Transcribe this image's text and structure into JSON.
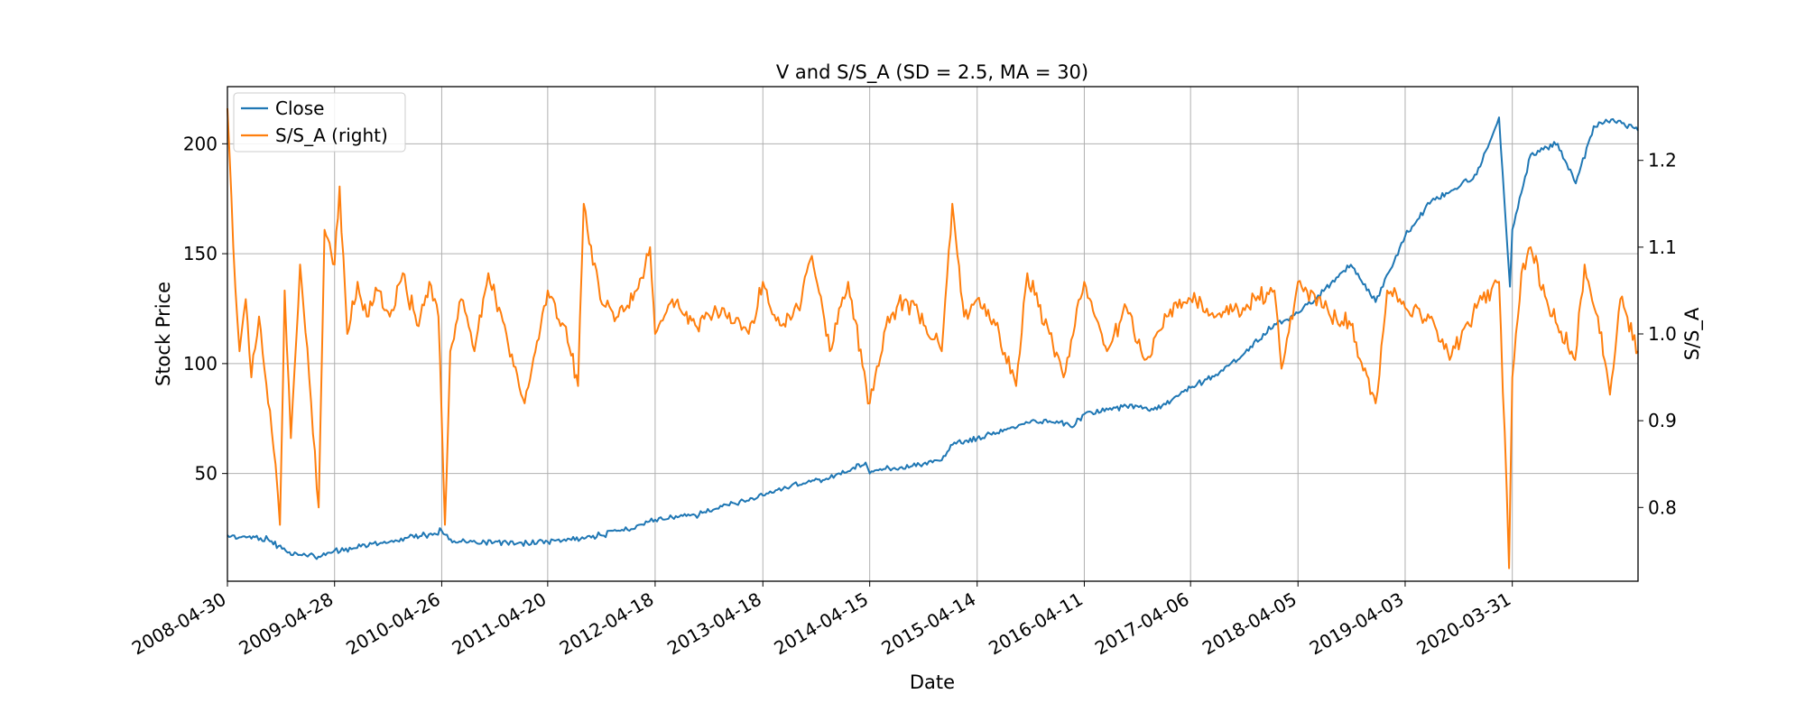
{
  "chart_data": {
    "type": "line",
    "title": "V and S/S_A (SD = 2.5, MA = 30)",
    "xlabel": "Date",
    "ylabel_left": "Stock Price",
    "ylabel_right": "S/S_A",
    "x_range": [
      "2008-04-30",
      "2021-05-31"
    ],
    "x_ticks": [
      "2008-04-30",
      "2009-04-28",
      "2010-04-26",
      "2011-04-20",
      "2012-04-18",
      "2013-04-18",
      "2014-04-15",
      "2015-04-14",
      "2016-04-11",
      "2017-04-06",
      "2018-04-05",
      "2019-04-03",
      "2020-03-31"
    ],
    "y_left_range": [
      1,
      226
    ],
    "y_left_ticks": [
      50,
      100,
      150,
      200
    ],
    "y_right_range": [
      0.715,
      1.285
    ],
    "y_right_ticks": [
      0.8,
      0.9,
      1.0,
      1.1,
      1.2
    ],
    "y_right_tick_labels": [
      "0.8",
      "0.9",
      "1.0",
      "1.1",
      "1.2"
    ],
    "grid": true,
    "legend_position": "upper-left",
    "series": [
      {
        "name": "Close",
        "axis": "left",
        "color": "#1f77b4",
        "points": [
          [
            "2008-04-30",
            22
          ],
          [
            "2008-06-15",
            21
          ],
          [
            "2008-08-01",
            21
          ],
          [
            "2008-09-15",
            20
          ],
          [
            "2008-10-20",
            17
          ],
          [
            "2008-11-20",
            14
          ],
          [
            "2009-01-01",
            13
          ],
          [
            "2009-02-15",
            13
          ],
          [
            "2009-03-10",
            12
          ],
          [
            "2009-04-28",
            15
          ],
          [
            "2009-07-01",
            16
          ],
          [
            "2009-09-01",
            18
          ],
          [
            "2009-11-01",
            19
          ],
          [
            "2010-01-04",
            21
          ],
          [
            "2010-03-01",
            22
          ],
          [
            "2010-04-26",
            24
          ],
          [
            "2010-05-20",
            20
          ],
          [
            "2010-07-01",
            19
          ],
          [
            "2010-09-01",
            18
          ],
          [
            "2010-11-01",
            19
          ],
          [
            "2011-01-03",
            18
          ],
          [
            "2011-04-20",
            19
          ],
          [
            "2011-06-15",
            20
          ],
          [
            "2011-08-15",
            21
          ],
          [
            "2011-10-15",
            22
          ],
          [
            "2012-01-03",
            24
          ],
          [
            "2012-04-18",
            29
          ],
          [
            "2012-06-15",
            30
          ],
          [
            "2012-09-01",
            31
          ],
          [
            "2012-12-01",
            35
          ],
          [
            "2013-04-18",
            40
          ],
          [
            "2013-07-01",
            44
          ],
          [
            "2013-09-15",
            46
          ],
          [
            "2013-12-01",
            48
          ],
          [
            "2014-02-01",
            51
          ],
          [
            "2014-04-01",
            55
          ],
          [
            "2014-04-15",
            50
          ],
          [
            "2014-06-01",
            52
          ],
          [
            "2014-08-01",
            53
          ],
          [
            "2014-10-01",
            54
          ],
          [
            "2014-12-15",
            56
          ],
          [
            "2015-01-15",
            63
          ],
          [
            "2015-04-14",
            66
          ],
          [
            "2015-07-15",
            70
          ],
          [
            "2015-10-15",
            74
          ],
          [
            "2016-01-15",
            73
          ],
          [
            "2016-03-01",
            71
          ],
          [
            "2016-04-11",
            77
          ],
          [
            "2016-07-01",
            79
          ],
          [
            "2016-10-01",
            81
          ],
          [
            "2016-12-01",
            79
          ],
          [
            "2017-04-06",
            89
          ],
          [
            "2017-07-01",
            95
          ],
          [
            "2017-10-01",
            104
          ],
          [
            "2018-01-15",
            118
          ],
          [
            "2018-04-05",
            123
          ],
          [
            "2018-07-01",
            133
          ],
          [
            "2018-10-01",
            145
          ],
          [
            "2018-12-24",
            128
          ],
          [
            "2019-04-03",
            158
          ],
          [
            "2019-07-01",
            174
          ],
          [
            "2019-09-01",
            178
          ],
          [
            "2019-12-01",
            186
          ],
          [
            "2020-02-15",
            212
          ],
          [
            "2020-03-23",
            135
          ],
          [
            "2020-03-31",
            161
          ],
          [
            "2020-06-01",
            195
          ],
          [
            "2020-09-01",
            200
          ],
          [
            "2020-11-01",
            182
          ],
          [
            "2021-01-01",
            208
          ],
          [
            "2021-03-01",
            211
          ],
          [
            "2021-05-31",
            206
          ]
        ]
      },
      {
        "name": "S/S_A (right)",
        "axis": "right",
        "color": "#ff7f0e",
        "points": [
          [
            "2008-04-30",
            1.26
          ],
          [
            "2008-05-20",
            1.1
          ],
          [
            "2008-06-10",
            0.98
          ],
          [
            "2008-07-01",
            1.04
          ],
          [
            "2008-07-20",
            0.95
          ],
          [
            "2008-08-15",
            1.02
          ],
          [
            "2008-09-15",
            0.92
          ],
          [
            "2008-10-10",
            0.85
          ],
          [
            "2008-10-25",
            0.78
          ],
          [
            "2008-11-10",
            1.05
          ],
          [
            "2008-12-01",
            0.88
          ],
          [
            "2009-01-01",
            1.08
          ],
          [
            "2009-02-01",
            0.95
          ],
          [
            "2009-03-05",
            0.8
          ],
          [
            "2009-03-25",
            1.12
          ],
          [
            "2009-04-28",
            1.08
          ],
          [
            "2009-05-15",
            1.17
          ],
          [
            "2009-06-10",
            1.0
          ],
          [
            "2009-07-15",
            1.06
          ],
          [
            "2009-08-15",
            1.02
          ],
          [
            "2009-09-20",
            1.05
          ],
          [
            "2009-11-01",
            1.02
          ],
          [
            "2009-12-15",
            1.07
          ],
          [
            "2010-02-01",
            1.01
          ],
          [
            "2010-03-15",
            1.06
          ],
          [
            "2010-04-15",
            1.02
          ],
          [
            "2010-05-07",
            0.78
          ],
          [
            "2010-05-25",
            0.98
          ],
          [
            "2010-07-01",
            1.04
          ],
          [
            "2010-08-15",
            0.98
          ],
          [
            "2010-10-01",
            1.07
          ],
          [
            "2010-12-01",
            1.0
          ],
          [
            "2011-02-01",
            0.92
          ],
          [
            "2011-04-20",
            1.05
          ],
          [
            "2011-06-15",
            1.01
          ],
          [
            "2011-08-01",
            0.94
          ],
          [
            "2011-08-20",
            1.15
          ],
          [
            "2011-10-15",
            1.04
          ],
          [
            "2011-12-15",
            1.02
          ],
          [
            "2012-02-15",
            1.05
          ],
          [
            "2012-04-01",
            1.1
          ],
          [
            "2012-04-18",
            1.0
          ],
          [
            "2012-06-15",
            1.04
          ],
          [
            "2012-09-01",
            1.01
          ],
          [
            "2012-12-01",
            1.03
          ],
          [
            "2013-03-01",
            1.0
          ],
          [
            "2013-04-18",
            1.06
          ],
          [
            "2013-06-15",
            1.01
          ],
          [
            "2013-08-15",
            1.03
          ],
          [
            "2013-10-01",
            1.09
          ],
          [
            "2013-12-01",
            0.98
          ],
          [
            "2014-02-01",
            1.06
          ],
          [
            "2014-04-15",
            0.92
          ],
          [
            "2014-06-15",
            1.02
          ],
          [
            "2014-08-15",
            1.04
          ],
          [
            "2014-10-15",
            1.01
          ],
          [
            "2014-12-15",
            0.98
          ],
          [
            "2015-01-20",
            1.15
          ],
          [
            "2015-03-01",
            1.02
          ],
          [
            "2015-04-14",
            1.04
          ],
          [
            "2015-06-15",
            1.01
          ],
          [
            "2015-08-24",
            0.94
          ],
          [
            "2015-10-01",
            1.07
          ],
          [
            "2015-12-15",
            1.0
          ],
          [
            "2016-02-01",
            0.95
          ],
          [
            "2016-04-11",
            1.06
          ],
          [
            "2016-06-27",
            0.98
          ],
          [
            "2016-09-01",
            1.03
          ],
          [
            "2016-11-01",
            0.97
          ],
          [
            "2017-01-15",
            1.02
          ],
          [
            "2017-04-06",
            1.04
          ],
          [
            "2017-07-01",
            1.02
          ],
          [
            "2017-10-01",
            1.03
          ],
          [
            "2018-01-15",
            1.05
          ],
          [
            "2018-02-08",
            0.96
          ],
          [
            "2018-04-05",
            1.06
          ],
          [
            "2018-07-01",
            1.03
          ],
          [
            "2018-10-01",
            1.01
          ],
          [
            "2018-12-24",
            0.92
          ],
          [
            "2019-02-01",
            1.05
          ],
          [
            "2019-04-03",
            1.03
          ],
          [
            "2019-07-01",
            1.02
          ],
          [
            "2019-09-01",
            0.97
          ],
          [
            "2019-12-01",
            1.03
          ],
          [
            "2020-02-15",
            1.06
          ],
          [
            "2020-03-12",
            0.82
          ],
          [
            "2020-03-20",
            0.73
          ],
          [
            "2020-03-31",
            0.95
          ],
          [
            "2020-05-01",
            1.07
          ],
          [
            "2020-06-01",
            1.1
          ],
          [
            "2020-08-01",
            1.03
          ],
          [
            "2020-10-30",
            0.97
          ],
          [
            "2020-12-01",
            1.08
          ],
          [
            "2021-01-15",
            1.02
          ],
          [
            "2021-02-25",
            0.93
          ],
          [
            "2021-04-01",
            1.04
          ],
          [
            "2021-05-31",
            0.98
          ]
        ]
      }
    ]
  }
}
